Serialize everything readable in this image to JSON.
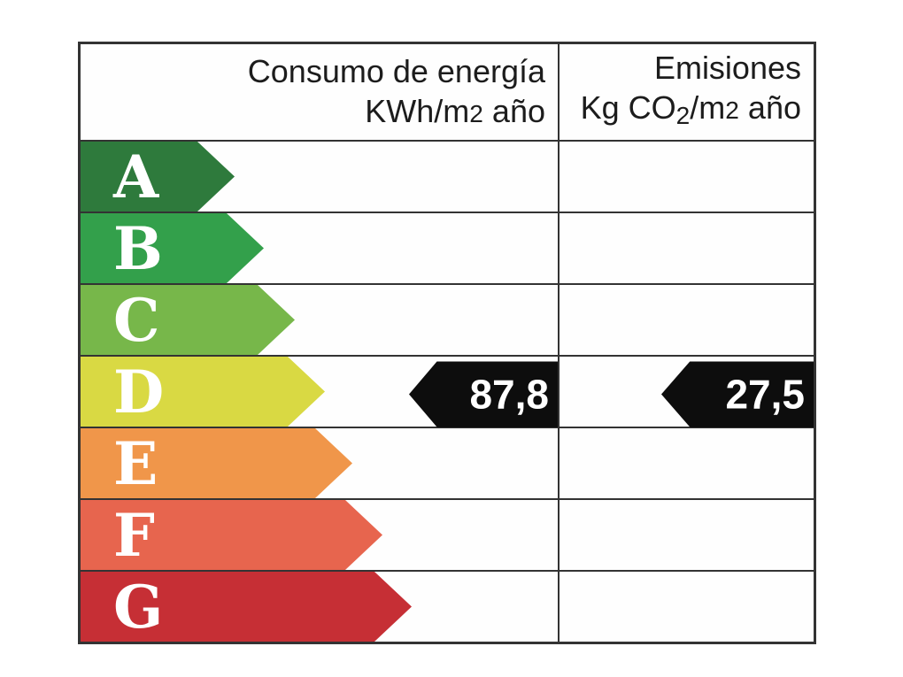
{
  "chart_data": {
    "type": "table",
    "title": "Energy efficiency rating label",
    "columns": [
      {
        "header": "Consumo de energía KWh/m2 año"
      },
      {
        "header": "Emisiones Kg CO2/m2 año"
      }
    ],
    "rating_scale": [
      "A",
      "B",
      "C",
      "D",
      "E",
      "F",
      "G"
    ],
    "selected_rating": "D",
    "consumption_kwh_per_m2_year": 87.8,
    "emissions_kg_co2_per_m2_year": 27.5
  },
  "header": {
    "consumption": {
      "line1": "Consumo de energía",
      "line2_pre": "KWh/m",
      "line2_exp": "2",
      "line2_post": " año"
    },
    "emissions": {
      "line1": "Emisiones",
      "line2_pre": "Kg CO",
      "line2_sub": "2",
      "line2_mid": "/m",
      "line2_exp": "2",
      "line2_post": " año"
    }
  },
  "ratings": [
    {
      "letter": "A",
      "color": "#2e7a3c",
      "arrow_width": 174
    },
    {
      "letter": "B",
      "color": "#33a04b",
      "arrow_width": 207
    },
    {
      "letter": "C",
      "color": "#77b74a",
      "arrow_width": 242
    },
    {
      "letter": "D",
      "color": "#d9d943",
      "arrow_width": 276
    },
    {
      "letter": "E",
      "color": "#f0964a",
      "arrow_width": 307
    },
    {
      "letter": "F",
      "color": "#e7654e",
      "arrow_width": 341
    },
    {
      "letter": "G",
      "color": "#c62f35",
      "arrow_width": 374
    }
  ],
  "values": {
    "rating_letter": "D",
    "consumption": "87,8",
    "emissions": "27,5",
    "consumption_arrow_width": 168,
    "emissions_arrow_width": 172
  },
  "colors": {
    "border": "#333333",
    "value_arrow": "#0d0d0d",
    "letter": "#ffffff",
    "header_text": "#1c1c1c",
    "background": "#ffffff"
  }
}
